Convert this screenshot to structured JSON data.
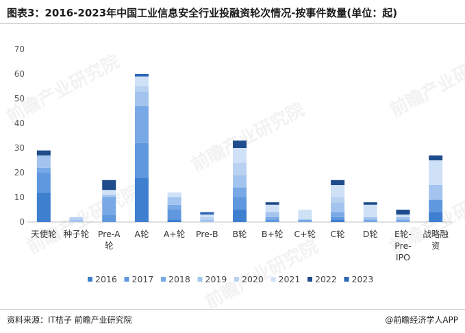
{
  "header": {
    "title": "图表3：2016-2023年中国工业信息安全行业投融资轮次情况-按事件数量(单位：起)"
  },
  "footer": {
    "source": "资料来源：IT桔子 前瞻产业研究院",
    "brand": "@前瞻经济学人APP"
  },
  "watermark": "前瞻产业研究院",
  "colors": {
    "2016": "#3E7FD0",
    "2017": "#5F98DF",
    "2018": "#78A9E6",
    "2019": "#A3C4EE",
    "2020": "#B9D2F2",
    "2021": "#CFE1F7",
    "2022": "#1E4C8C",
    "2023": "#2B66B5"
  },
  "chart_data": {
    "type": "bar",
    "stacked": true,
    "categories": [
      "天使轮",
      "种子轮",
      "Pre-A轮",
      "A轮",
      "A+轮",
      "Pre-B",
      "B轮",
      "B+轮",
      "C+轮",
      "C轮",
      "D轮",
      "E轮-Pre-IPO",
      "战略融资"
    ],
    "category_label_lines": [
      [
        "天使轮"
      ],
      [
        "种子轮"
      ],
      [
        "Pre-A",
        "轮"
      ],
      [
        "A轮"
      ],
      [
        "A+轮"
      ],
      [
        "Pre-B"
      ],
      [
        "B轮"
      ],
      [
        "B+轮"
      ],
      [
        "C+轮"
      ],
      [
        "C轮"
      ],
      [
        "D轮"
      ],
      [
        "E轮-",
        "Pre-",
        "IPO"
      ],
      [
        "战略融",
        "资"
      ]
    ],
    "series": [
      {
        "name": "2016",
        "values": [
          12,
          0,
          0,
          18,
          1,
          0,
          5,
          0,
          0,
          1,
          0,
          0,
          4
        ]
      },
      {
        "name": "2017",
        "values": [
          8,
          0,
          3,
          14,
          4,
          0,
          5,
          1,
          0,
          1,
          0,
          0,
          5
        ]
      },
      {
        "name": "2018",
        "values": [
          2,
          0,
          7,
          15,
          2,
          0,
          4,
          1,
          1,
          2,
          1,
          1,
          0
        ]
      },
      {
        "name": "2019",
        "values": [
          5,
          1,
          1,
          6,
          3,
          1,
          5,
          2,
          0,
          4,
          1,
          1,
          6
        ]
      },
      {
        "name": "2020",
        "values": [
          0,
          1,
          0,
          2,
          0,
          1,
          5,
          0,
          0,
          2,
          0,
          0,
          0
        ]
      },
      {
        "name": "2021",
        "values": [
          0,
          0,
          2,
          4,
          2,
          1,
          6,
          3,
          4,
          5,
          5,
          1,
          10
        ]
      },
      {
        "name": "2022",
        "values": [
          2,
          0,
          4,
          0,
          0,
          0,
          3,
          1,
          0,
          2,
          1,
          2,
          2
        ]
      },
      {
        "name": "2023",
        "values": [
          0,
          0,
          0,
          1,
          0,
          1,
          0,
          0,
          0,
          0,
          0,
          0,
          0
        ]
      }
    ],
    "ylim": [
      0,
      70
    ],
    "yticks": [
      0,
      10,
      20,
      30,
      40,
      50,
      60,
      70
    ],
    "grid": false,
    "legend_position": "bottom",
    "xlabel": "",
    "ylabel": ""
  }
}
